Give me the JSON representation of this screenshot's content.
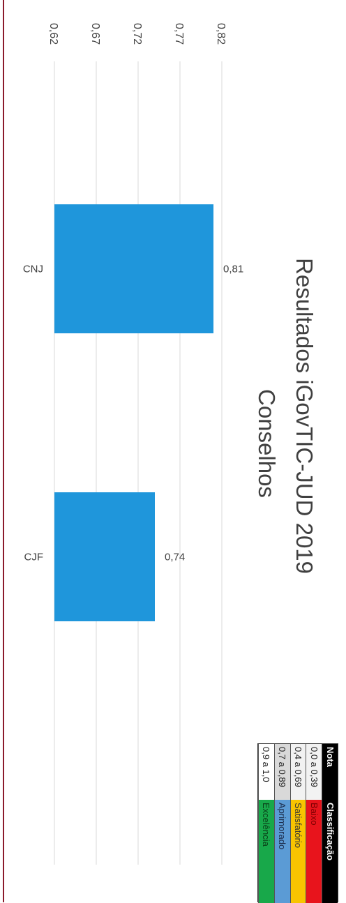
{
  "chart_data": {
    "type": "bar",
    "title_lines": [
      "Resultados iGovTIC-JUD 2019",
      "Conselhos"
    ],
    "categories": [
      "CNJ",
      "CJF"
    ],
    "values": [
      0.81,
      0.74
    ],
    "value_labels": [
      "0,81",
      "0,74"
    ],
    "tick_labels": [
      "0,62",
      "0,67",
      "0,72",
      "0,77",
      "0,82"
    ],
    "ticks": [
      0.62,
      0.67,
      0.72,
      0.77,
      0.82
    ],
    "ylim": [
      0.62,
      0.82
    ],
    "grid": true,
    "bar_color": "#1f96db",
    "orientation_note": "image rotated 90 degrees clockwise"
  },
  "legend": {
    "header": {
      "nota": "Nota",
      "classificacao": "Classificação"
    },
    "rows": [
      {
        "nota": "0,0 a 0,39",
        "classificacao": "Baixo",
        "color": "#e8141c"
      },
      {
        "nota": "0,4 a 0,69",
        "classificacao": "Satisfatório",
        "color": "#f8c400"
      },
      {
        "nota": "0,7 a 0,89",
        "classificacao": "Aprimorado",
        "color": "#5b9bd5"
      },
      {
        "nota": "0,9 a 1,0",
        "classificacao": "Excelência",
        "color": "#18a84a"
      }
    ]
  }
}
